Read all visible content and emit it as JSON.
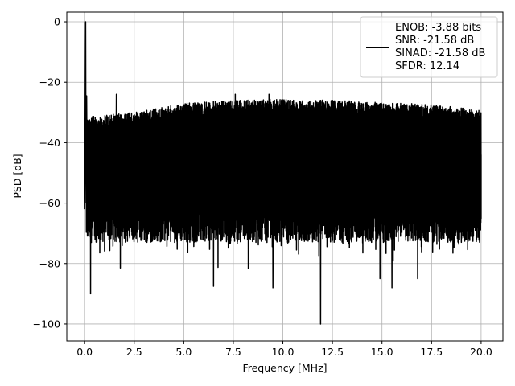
{
  "chart_data": {
    "type": "line",
    "title": "",
    "xlabel": "Frequency [MHz]",
    "ylabel": "PSD [dB]",
    "xlim": [
      -0.9,
      21.1
    ],
    "ylim": [
      -105.6,
      3.2
    ],
    "xticks": [
      0.0,
      2.5,
      5.0,
      7.5,
      10.0,
      12.5,
      15.0,
      17.5,
      20.0
    ],
    "xtick_labels": [
      "0.0",
      "2.5",
      "5.0",
      "7.5",
      "10.0",
      "12.5",
      "15.0",
      "17.5",
      "20.0"
    ],
    "yticks": [
      0,
      -20,
      -40,
      -60,
      -80,
      -100
    ],
    "ytick_labels": [
      "0",
      "−20",
      "−40",
      "−60",
      "−80",
      "−100"
    ],
    "grid": true,
    "legend_position": "upper-right",
    "series": [
      {
        "name": "ENOB: -3.88 bits\nSNR: -21.58 dB\nSINAD: -21.58 dB\nSFDR: 12.14",
        "legend_lines": [
          "ENOB: -3.88 bits",
          "SNR: -21.58 dB",
          "SINAD: -21.58 dB",
          "SFDR: 12.14"
        ],
        "color": "#000000",
        "x_range": [
          0.0,
          20.0
        ],
        "peak": {
          "x": 0.05,
          "y": 0.0
        },
        "spurs": [
          {
            "x": 0.1,
            "y": -24.5
          },
          {
            "x": 1.6,
            "y": -24.0
          },
          {
            "x": 7.6,
            "y": -24.0
          },
          {
            "x": 9.3,
            "y": -24.0
          }
        ],
        "upper_envelope": [
          {
            "x": 0.0,
            "y": -31.5
          },
          {
            "x": 2.5,
            "y": -30.0
          },
          {
            "x": 5.0,
            "y": -27.0
          },
          {
            "x": 7.5,
            "y": -26.0
          },
          {
            "x": 10.0,
            "y": -25.5
          },
          {
            "x": 12.5,
            "y": -26.0
          },
          {
            "x": 15.0,
            "y": -26.5
          },
          {
            "x": 17.5,
            "y": -27.5
          },
          {
            "x": 20.0,
            "y": -29.0
          }
        ],
        "typical_floor_range": [
          -73,
          -62
        ],
        "deep_nulls": [
          {
            "x": 0.3,
            "y": -90.0
          },
          {
            "x": 6.5,
            "y": -87.5
          },
          {
            "x": 9.5,
            "y": -88.0
          },
          {
            "x": 11.9,
            "y": -100.0
          },
          {
            "x": 14.9,
            "y": -85.0
          },
          {
            "x": 15.5,
            "y": -88.0
          },
          {
            "x": 16.8,
            "y": -85.0
          }
        ]
      }
    ]
  },
  "colors": {
    "line": "#000000",
    "grid": "#b0b0b0",
    "background": "#ffffff",
    "legend_border": "#cccccc"
  }
}
